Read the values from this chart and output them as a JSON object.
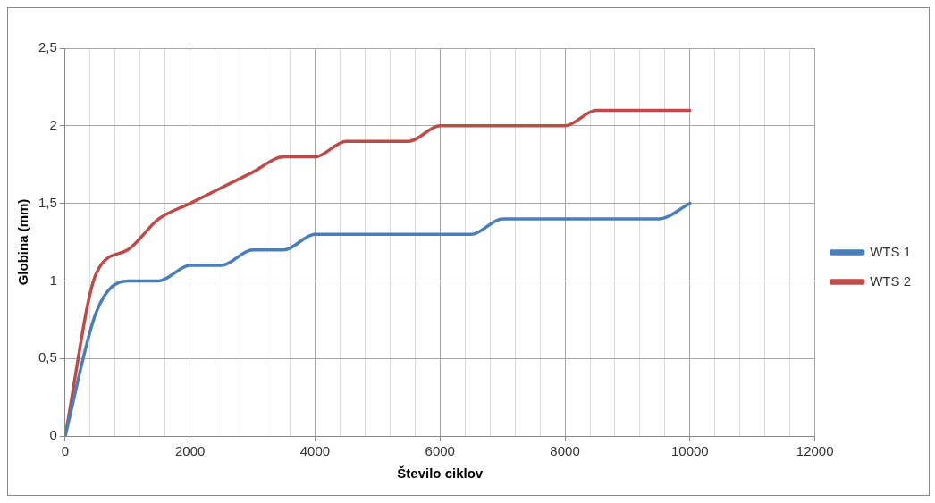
{
  "chart_data": {
    "type": "line",
    "xlabel": "Število ciklov",
    "ylabel": "Globina (mm)",
    "x": [
      0,
      500,
      1000,
      1500,
      2000,
      2500,
      3000,
      3500,
      4000,
      4500,
      5000,
      5500,
      6000,
      6500,
      7000,
      7500,
      8000,
      8500,
      9000,
      9500,
      10000
    ],
    "series": [
      {
        "name": "WTS 1",
        "color": "#4a7ebb",
        "values": [
          0,
          0.8,
          1,
          1,
          1.1,
          1.1,
          1.2,
          1.2,
          1.3,
          1.3,
          1.3,
          1.3,
          1.3,
          1.3,
          1.4,
          1.4,
          1.4,
          1.4,
          1.4,
          1.4,
          1.5
        ]
      },
      {
        "name": "WTS 2",
        "color": "#be4b48",
        "values": [
          0,
          1.05,
          1.2,
          1.4,
          1.5,
          1.6,
          1.7,
          1.8,
          1.8,
          1.9,
          1.9,
          1.9,
          2,
          2,
          2,
          2,
          2,
          2.1,
          2.1,
          2.1,
          2.1
        ]
      }
    ],
    "xlim": [
      0,
      12000
    ],
    "xticks": [
      0,
      {
        "value": 400,
        "label": null
      },
      {
        "value": 800,
        "label": null
      },
      {
        "value": 1200,
        "label": null
      },
      {
        "value": 1600,
        "label": null
      },
      2000,
      {
        "value": 2400,
        "label": null
      },
      {
        "value": 2800,
        "label": null
      },
      {
        "value": 3200,
        "label": null
      },
      {
        "value": 3600,
        "label": null
      },
      4000,
      {
        "value": 4400,
        "label": null
      },
      {
        "value": 4800,
        "label": null
      },
      {
        "value": 5200,
        "label": null
      },
      {
        "value": 5600,
        "label": null
      },
      6000,
      {
        "value": 6400,
        "label": null
      },
      {
        "value": 6800,
        "label": null
      },
      {
        "value": 7200,
        "label": null
      },
      {
        "value": 7600,
        "label": null
      },
      8000,
      {
        "value": 8400,
        "label": null
      },
      {
        "value": 8800,
        "label": null
      },
      {
        "value": 9200,
        "label": null
      },
      {
        "value": 9600,
        "label": null
      },
      10000,
      {
        "value": 10400,
        "label": null
      },
      {
        "value": 10800,
        "label": null
      },
      {
        "value": 11200,
        "label": null
      },
      {
        "value": 11600,
        "label": null
      },
      12000
    ],
    "ylim": [
      0,
      2.5
    ],
    "yticks": [
      0,
      {
        "value": 0.5,
        "label": "0,5"
      },
      1,
      {
        "value": 1.5,
        "label": "1,5"
      },
      2,
      {
        "value": 2.5,
        "label": "2,5"
      }
    ],
    "grid": true,
    "legend": "right",
    "marker": "none",
    "line_style": "solid"
  }
}
